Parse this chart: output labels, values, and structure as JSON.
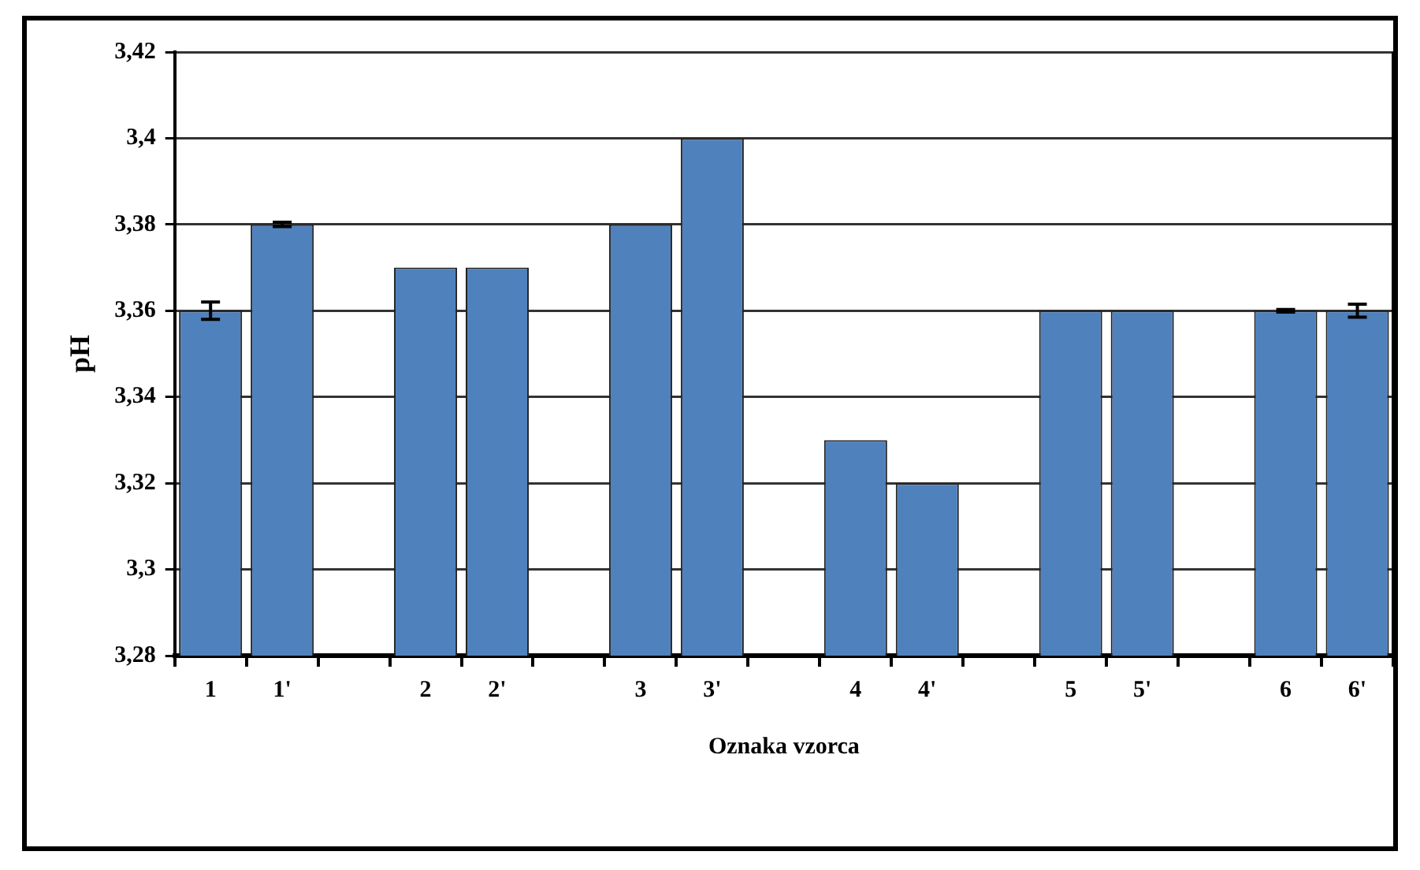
{
  "chart_data": {
    "type": "bar",
    "xlabel": "Oznaka vzorca",
    "ylabel": "pH",
    "categories": [
      "1",
      "1'",
      null,
      "2",
      "2'",
      null,
      "3",
      "3'",
      null,
      "4",
      "4'",
      null,
      "5",
      "5'",
      null,
      "6",
      "6'"
    ],
    "values": [
      3.36,
      3.38,
      null,
      3.37,
      3.37,
      null,
      3.38,
      3.4,
      null,
      3.33,
      3.32,
      null,
      3.36,
      3.36,
      null,
      3.36,
      3.36
    ],
    "errors": [
      0.002,
      0.0005,
      null,
      null,
      null,
      null,
      null,
      null,
      null,
      null,
      null,
      null,
      null,
      null,
      null,
      0.0003,
      0.0015
    ],
    "color": "#4f81bd",
    "ylim": [
      3.28,
      3.42
    ],
    "yticks": [
      {
        "value": 3.28,
        "label": "3,28"
      },
      {
        "value": 3.3,
        "label": "3,3"
      },
      {
        "value": 3.32,
        "label": "3,32"
      },
      {
        "value": 3.34,
        "label": "3,34"
      },
      {
        "value": 3.36,
        "label": "3,36"
      },
      {
        "value": 3.38,
        "label": "3,38"
      },
      {
        "value": 3.4,
        "label": "3,4"
      },
      {
        "value": 3.42,
        "label": "3,42"
      }
    ],
    "grid": "y",
    "legend": false
  }
}
